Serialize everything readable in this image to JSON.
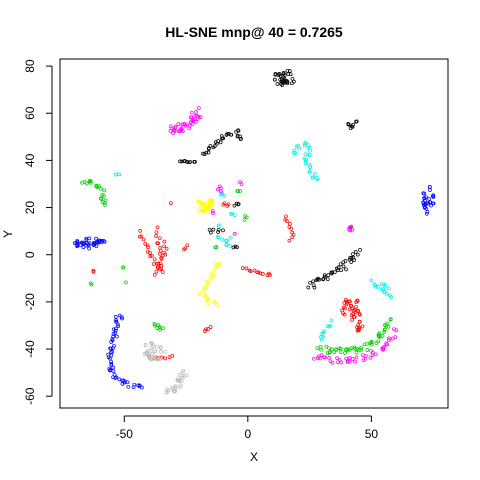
{
  "chart_data": {
    "type": "scatter",
    "title": "HL-SNE mnp@ 40 = 0.7265",
    "xlabel": "X",
    "ylabel": "Y",
    "xlim": [
      -76,
      81
    ],
    "ylim": [
      -65,
      83
    ],
    "xticks": [
      -50,
      0,
      50
    ],
    "yticks": [
      -60,
      -40,
      -20,
      0,
      20,
      40,
      60,
      80
    ],
    "grid": false,
    "legend": "none",
    "marker": "open-circle",
    "series": [
      {
        "color": "#000000",
        "clusters": [
          {
            "kind": "blob",
            "center": [
              15,
              75
            ],
            "rx": 4.5,
            "ry": 3.5,
            "n": 36
          },
          {
            "kind": "curve",
            "points": [
              [
                -18,
                42
              ],
              [
                -14,
                46
              ],
              [
                -9,
                50
              ],
              [
                -4,
                52
              ],
              [
                -3,
                48
              ]
            ],
            "width": 1.0,
            "n": 30
          },
          {
            "kind": "curve",
            "points": [
              [
                -28,
                40
              ],
              [
                -21,
                39
              ]
            ],
            "width": 0.5,
            "n": 9
          },
          {
            "kind": "curve",
            "points": [
              [
                40,
                56
              ],
              [
                42,
                54
              ],
              [
                44,
                57
              ]
            ],
            "width": 0.6,
            "n": 9
          },
          {
            "kind": "curve",
            "points": [
              [
                25,
                -14
              ],
              [
                33,
                -8
              ],
              [
                40,
                -4
              ],
              [
                45,
                1
              ]
            ],
            "width": 1.4,
            "n": 38
          },
          {
            "kind": "curve",
            "points": [
              [
                -16,
                10
              ],
              [
                -10,
                10
              ]
            ],
            "width": 0.8,
            "n": 6
          },
          {
            "kind": "curve",
            "points": [
              [
                -6,
                21
              ],
              [
                -3,
                22
              ]
            ],
            "width": 0.5,
            "n": 4
          },
          {
            "kind": "blob",
            "center": [
              -5,
              3
            ],
            "rx": 1.2,
            "ry": 0.8,
            "n": 3
          }
        ]
      },
      {
        "color": "#ff0000",
        "clusters": [
          {
            "kind": "curve",
            "points": [
              [
                -44,
                10
              ],
              [
                -41,
                4
              ],
              [
                -39,
                -1
              ],
              [
                -36,
                -6
              ],
              [
                -38,
                -9
              ]
            ],
            "width": 0.8,
            "n": 18
          },
          {
            "kind": "curve",
            "points": [
              [
                -37,
                12
              ],
              [
                -36,
                6
              ],
              [
                -36,
                0
              ],
              [
                -35,
                -8
              ]
            ],
            "width": 0.8,
            "n": 14
          },
          {
            "kind": "curve",
            "points": [
              [
                -33,
                6
              ],
              [
                -34,
                0
              ],
              [
                -37,
                -5
              ]
            ],
            "width": 0.7,
            "n": 9
          },
          {
            "kind": "curve",
            "points": [
              [
                -2,
                -6
              ],
              [
                4,
                -7
              ],
              [
                10,
                -9
              ]
            ],
            "width": 0.6,
            "n": 12
          },
          {
            "kind": "curve",
            "points": [
              [
                15,
                17
              ],
              [
                17,
                12
              ],
              [
                19,
                9
              ],
              [
                17,
                6
              ]
            ],
            "width": 0.6,
            "n": 10
          },
          {
            "kind": "blob",
            "center": [
              42,
              -23
            ],
            "rx": 4,
            "ry": 5,
            "n": 32
          },
          {
            "kind": "blob",
            "center": [
              45,
              -30
            ],
            "rx": 2,
            "ry": 2.5,
            "n": 10
          },
          {
            "kind": "curve",
            "points": [
              [
                -18,
                -33
              ],
              [
                -15,
                -30
              ]
            ],
            "width": 0.4,
            "n": 4
          },
          {
            "kind": "curve",
            "points": [
              [
                -40,
                -43
              ],
              [
                -35,
                -44
              ],
              [
                -30,
                -42
              ]
            ],
            "width": 0.6,
            "n": 7
          },
          {
            "kind": "curve",
            "points": [
              [
                -26,
                2
              ],
              [
                -24,
                4
              ]
            ],
            "width": 0.4,
            "n": 3
          },
          {
            "kind": "blob",
            "center": [
              -62,
              -7
            ],
            "rx": 0.6,
            "ry": 0.6,
            "n": 2
          },
          {
            "kind": "blob",
            "center": [
              -9,
              21
            ],
            "rx": 1.5,
            "ry": 1,
            "n": 4
          },
          {
            "kind": "blob",
            "center": [
              -31,
              22
            ],
            "rx": 0.5,
            "ry": 0.5,
            "n": 1
          },
          {
            "kind": "blob",
            "center": [
              42,
              12
            ],
            "rx": 1,
            "ry": 1,
            "n": 2
          }
        ]
      },
      {
        "color": "#00cd00",
        "clusters": [
          {
            "kind": "curve",
            "points": [
              [
                -67,
                31
              ],
              [
                -62,
                30
              ],
              [
                -59,
                26
              ],
              [
                -58,
                21
              ]
            ],
            "width": 1.2,
            "n": 22
          },
          {
            "kind": "curve",
            "points": [
              [
                -38,
                -29
              ],
              [
                -36,
                -31
              ],
              [
                -34,
                -32
              ]
            ],
            "width": 0.7,
            "n": 8
          },
          {
            "kind": "curve",
            "points": [
              [
                28,
                -40
              ],
              [
                37,
                -41
              ],
              [
                46,
                -40
              ],
              [
                53,
                -35
              ],
              [
                57,
                -27
              ]
            ],
            "width": 1.4,
            "n": 52
          },
          {
            "kind": "blob",
            "center": [
              -51,
              -5
            ],
            "rx": 0.8,
            "ry": 0.8,
            "n": 2
          },
          {
            "kind": "blob",
            "center": [
              -63,
              -12
            ],
            "rx": 0.6,
            "ry": 0.8,
            "n": 2
          },
          {
            "kind": "blob",
            "center": [
              -4,
              27
            ],
            "rx": 1.2,
            "ry": 1.2,
            "n": 3
          },
          {
            "kind": "blob",
            "center": [
              -1,
              15
            ],
            "rx": 0.8,
            "ry": 1.5,
            "n": 3
          },
          {
            "kind": "blob",
            "center": [
              -13,
              3
            ],
            "rx": 0.6,
            "ry": 0.6,
            "n": 2
          },
          {
            "kind": "blob",
            "center": [
              -49,
              -12
            ],
            "rx": 0.5,
            "ry": 0.5,
            "n": 1
          }
        ]
      },
      {
        "color": "#0000ff",
        "clusters": [
          {
            "kind": "blob",
            "center": [
              -64,
              5
            ],
            "rx": 6.5,
            "ry": 2.5,
            "n": 40
          },
          {
            "kind": "curve",
            "points": [
              [
                -50,
                -26
              ],
              [
                -53,
                -27
              ],
              [
                -54,
                -35
              ],
              [
                -56,
                -42
              ],
              [
                -55,
                -50
              ],
              [
                -50,
                -54
              ],
              [
                -43,
                -57
              ]
            ],
            "width": 1.0,
            "n": 55
          },
          {
            "kind": "blob",
            "center": [
              73,
              23
            ],
            "rx": 2.5,
            "ry": 6,
            "n": 30
          }
        ]
      },
      {
        "color": "#00eeee",
        "clusters": [
          {
            "kind": "curve",
            "points": [
              [
                18,
                43
              ],
              [
                21,
                46
              ],
              [
                24,
                47
              ],
              [
                25,
                44
              ],
              [
                23,
                40
              ],
              [
                26,
                35
              ],
              [
                28,
                31
              ]
            ],
            "width": 1.0,
            "n": 30
          },
          {
            "kind": "curve",
            "points": [
              [
                -54,
                34
              ],
              [
                -52,
                34
              ]
            ],
            "width": 0.4,
            "n": 3
          },
          {
            "kind": "curve",
            "points": [
              [
                -13,
                8
              ],
              [
                -10,
                6
              ],
              [
                -6,
                7
              ]
            ],
            "width": 0.6,
            "n": 6
          },
          {
            "kind": "curve",
            "points": [
              [
                30,
                -37
              ],
              [
                31,
                -33
              ],
              [
                34,
                -28
              ]
            ],
            "width": 0.8,
            "n": 10
          },
          {
            "kind": "curve",
            "points": [
              [
                50,
                -11
              ],
              [
                54,
                -15
              ],
              [
                58,
                -18
              ]
            ],
            "width": 0.7,
            "n": 12
          },
          {
            "kind": "curve",
            "points": [
              [
                54,
                -12
              ],
              [
                57,
                -14
              ]
            ],
            "width": 0.5,
            "n": 4
          },
          {
            "kind": "blob",
            "center": [
              -10,
              26
            ],
            "rx": 1.5,
            "ry": 1.2,
            "n": 4
          },
          {
            "kind": "blob",
            "center": [
              -6,
              17
            ],
            "rx": 1,
            "ry": 1,
            "n": 3
          },
          {
            "kind": "blob",
            "center": [
              -8,
              4
            ],
            "rx": 1,
            "ry": 1,
            "n": 3
          },
          {
            "kind": "blob",
            "center": [
              -12,
              12
            ],
            "rx": 0.6,
            "ry": 0.6,
            "n": 2
          }
        ]
      },
      {
        "color": "#ff00ff",
        "clusters": [
          {
            "kind": "curve",
            "points": [
              [
                -32,
                53
              ],
              [
                -26,
                54
              ],
              [
                -22,
                57
              ],
              [
                -20,
                61
              ]
            ],
            "width": 1.8,
            "n": 40
          },
          {
            "kind": "curve",
            "points": [
              [
                26,
                -43
              ],
              [
                36,
                -45
              ],
              [
                46,
                -44
              ],
              [
                55,
                -40
              ],
              [
                60,
                -32
              ]
            ],
            "width": 1.2,
            "n": 44
          },
          {
            "kind": "blob",
            "center": [
              -11,
              28
            ],
            "rx": 1.2,
            "ry": 1.2,
            "n": 4
          },
          {
            "kind": "blob",
            "center": [
              41,
              11
            ],
            "rx": 1.5,
            "ry": 1.2,
            "n": 4
          },
          {
            "kind": "blob",
            "center": [
              -3,
              30
            ],
            "rx": 0.8,
            "ry": 0.8,
            "n": 2
          },
          {
            "kind": "blob",
            "center": [
              -6,
              9
            ],
            "rx": 0.8,
            "ry": 0.8,
            "n": 2
          },
          {
            "kind": "blob",
            "center": [
              -14,
              18
            ],
            "rx": 0.6,
            "ry": 0.6,
            "n": 2
          }
        ]
      },
      {
        "color": "#ffff00",
        "clusters": [
          {
            "kind": "blob",
            "center": [
              -17,
              21
            ],
            "rx": 4,
            "ry": 3.5,
            "n": 30
          },
          {
            "kind": "curve",
            "points": [
              [
                -12,
                -3
              ],
              [
                -15,
                -10
              ],
              [
                -19,
                -16
              ],
              [
                -16,
                -20
              ],
              [
                -11,
                -21
              ]
            ],
            "width": 1.0,
            "n": 26
          }
        ]
      },
      {
        "color": "#bebebe",
        "clusters": [
          {
            "kind": "blob",
            "center": [
              -38,
              -41
            ],
            "rx": 5,
            "ry": 4,
            "n": 34
          },
          {
            "kind": "curve",
            "points": [
              [
                -33,
                -58
              ],
              [
                -29,
                -57
              ],
              [
                -27,
                -52
              ],
              [
                -25,
                -50
              ]
            ],
            "width": 1.3,
            "n": 28
          }
        ]
      }
    ]
  }
}
